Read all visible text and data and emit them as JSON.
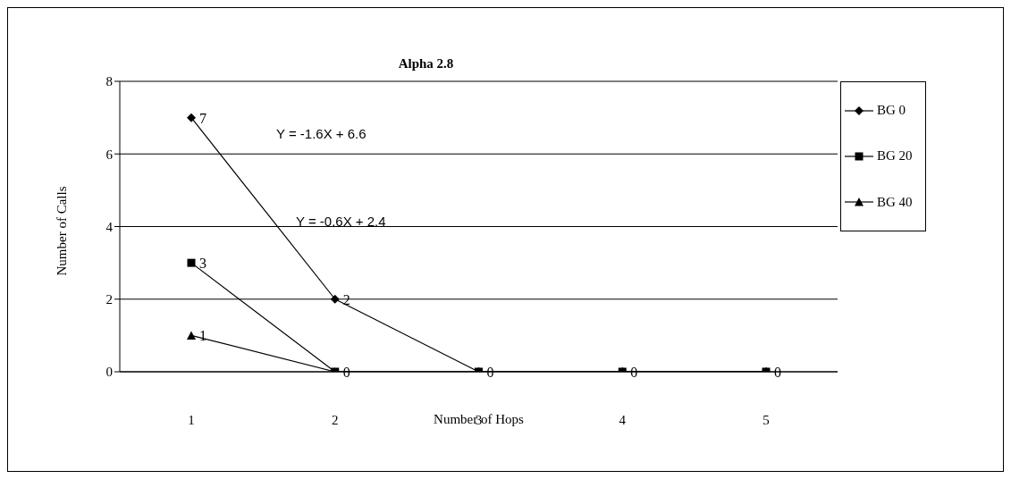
{
  "chart_data": {
    "type": "line",
    "title": "Alpha 2.8",
    "xlabel": "Number of Hops",
    "ylabel": "Number of Calls",
    "categories": [
      "1",
      "2",
      "3",
      "4",
      "5"
    ],
    "series": [
      {
        "name": "BG 0",
        "color": "#000000",
        "marker": "diamond",
        "values": [
          7,
          2,
          0,
          0,
          0
        ],
        "value_labels": [
          "7",
          "2",
          "0",
          "0",
          "0"
        ]
      },
      {
        "name": "BG 20",
        "color": "#000000",
        "marker": "square",
        "values": [
          3,
          0,
          0,
          0,
          0
        ],
        "value_labels": [
          "3",
          "0",
          null,
          null,
          null
        ]
      },
      {
        "name": "BG 40",
        "color": "#000000",
        "marker": "triangle",
        "values": [
          1,
          0,
          0,
          0,
          0
        ],
        "value_labels": [
          "1",
          null,
          null,
          null,
          null
        ]
      }
    ],
    "annotations": [
      "Y = -1.6X + 6.6",
      "Y = -0.6X + 2.4"
    ],
    "ylim": [
      0,
      8
    ],
    "yticks": [
      0,
      2,
      4,
      6,
      8
    ],
    "grid": "y",
    "legend": "right"
  }
}
